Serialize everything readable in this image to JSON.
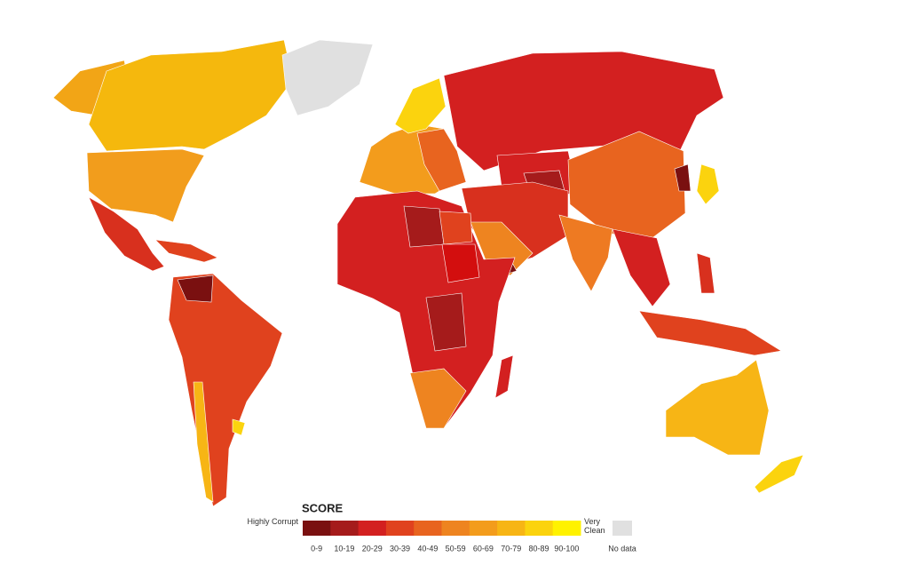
{
  "legend": {
    "title": "SCORE",
    "low_label": "Highly Corrupt",
    "high_label": "Very Clean",
    "bins": [
      {
        "label": "0-9",
        "color": "#7a1010"
      },
      {
        "label": "10-19",
        "color": "#a51b1b"
      },
      {
        "label": "20-29",
        "color": "#d32020"
      },
      {
        "label": "30-39",
        "color": "#e0421e"
      },
      {
        "label": "40-49",
        "color": "#e8641f"
      },
      {
        "label": "50-59",
        "color": "#ee8420"
      },
      {
        "label": "60-69",
        "color": "#f39c1c"
      },
      {
        "label": "70-79",
        "color": "#f7b515"
      },
      {
        "label": "80-89",
        "color": "#fbd30e"
      },
      {
        "label": "90-100",
        "color": "#fff200"
      }
    ],
    "no_data": {
      "label": "No data",
      "color": "#e0e0e0"
    }
  }
}
